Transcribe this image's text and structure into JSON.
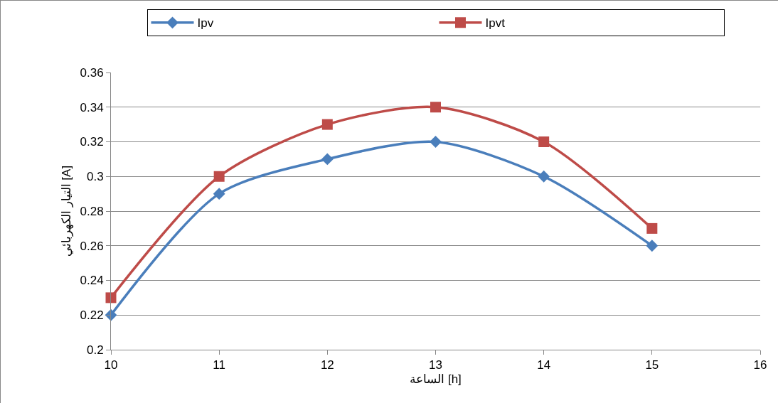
{
  "chart_data": {
    "type": "line",
    "xlabel": "الساعة [h]",
    "ylabel": "التيار الكهربائي [A]",
    "x": [
      10,
      11,
      12,
      13,
      14,
      15
    ],
    "series": [
      {
        "name": "Ipv",
        "color": "#4a7ebb",
        "marker": "diamond",
        "values": [
          0.22,
          0.29,
          0.31,
          0.32,
          0.3,
          0.26
        ]
      },
      {
        "name": "Ipvt",
        "color": "#be4b48",
        "marker": "square",
        "values": [
          0.23,
          0.3,
          0.33,
          0.34,
          0.32,
          0.27
        ]
      }
    ],
    "xlim": [
      10,
      16
    ],
    "xticks": [
      10,
      11,
      12,
      13,
      14,
      15,
      16
    ],
    "ylim": [
      0.2,
      0.36
    ],
    "yticks": [
      0.2,
      0.22,
      0.24,
      0.26,
      0.28,
      0.3,
      0.32,
      0.34,
      0.36
    ],
    "grid": "y",
    "legend": "top",
    "line_style": "solid"
  }
}
